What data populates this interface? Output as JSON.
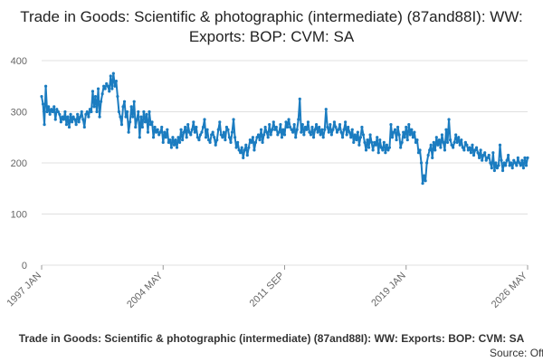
{
  "chart_data": {
    "type": "line",
    "title": "Trade in Goods: Scientific & photographic (intermediate) (87and88I): WW: Exports: BOP: CVM: SA",
    "footer": "Trade in Goods: Scientific & photographic (intermediate) (87and88I): WW: Exports: BOP: CVM: SA",
    "source": "Source: Office for National Statistics",
    "color": "#1b7cc0",
    "ylim": [
      0,
      400
    ],
    "yticks": [
      0,
      100,
      200,
      300,
      400
    ],
    "grid": true,
    "categories": [
      "1997 JAN",
      null,
      null,
      null,
      null,
      null,
      null,
      null,
      null,
      null,
      null,
      null,
      null,
      null,
      null,
      null,
      null,
      null,
      null,
      null,
      null,
      null,
      null,
      null,
      null,
      null,
      null,
      null,
      null,
      null,
      null,
      null,
      null,
      null,
      null,
      null,
      null,
      null,
      null,
      null,
      null,
      null,
      null,
      null,
      null,
      null,
      null,
      null,
      null,
      null,
      null,
      null,
      null,
      null,
      null,
      null,
      null,
      null,
      null,
      null,
      null,
      null,
      null,
      null,
      null,
      null,
      null,
      null,
      null,
      null,
      null,
      null,
      null,
      null,
      null,
      null,
      null,
      null,
      null,
      null,
      null,
      null,
      null,
      null,
      null,
      null,
      null,
      null,
      "2004 MAY",
      null,
      null,
      null,
      null,
      null,
      null,
      null,
      null,
      null,
      null,
      null,
      null,
      null,
      null,
      null,
      null,
      null,
      null,
      null,
      null,
      null,
      null,
      null,
      null,
      null,
      null,
      null,
      null,
      null,
      null,
      null,
      null,
      null,
      null,
      null,
      null,
      null,
      null,
      null,
      null,
      null,
      null,
      null,
      null,
      null,
      null,
      null,
      null,
      null,
      null,
      null,
      null,
      null,
      null,
      null,
      null,
      null,
      null,
      null,
      null,
      null,
      null,
      null,
      null,
      null,
      null,
      null,
      null,
      null,
      null,
      null,
      null,
      null,
      null,
      null,
      null,
      null,
      null,
      null,
      null,
      null,
      null,
      null,
      null,
      null,
      null,
      null,
      "2011 SEP",
      null,
      null,
      null,
      null,
      null,
      null,
      null,
      null,
      null,
      null,
      null,
      null,
      null,
      null,
      null,
      null,
      null,
      null,
      null,
      null,
      null,
      null,
      null,
      null,
      null,
      null,
      null,
      null,
      null,
      null,
      null,
      null,
      null,
      null,
      null,
      null,
      null,
      null,
      null,
      null,
      null,
      null,
      null,
      null,
      null,
      null,
      null,
      null,
      null,
      null,
      null,
      null,
      null,
      null,
      null,
      null,
      null,
      null,
      null,
      null,
      null,
      null,
      null,
      null,
      null,
      null,
      null,
      null,
      null,
      null,
      null,
      null,
      null,
      null,
      null,
      null,
      null,
      null,
      null,
      null,
      null,
      null,
      null,
      null,
      null,
      null,
      null,
      "2019 JAN",
      null,
      null,
      null,
      null,
      null,
      null,
      null,
      null,
      null,
      null,
      null,
      null,
      null,
      null,
      null,
      null,
      null,
      null,
      null,
      null,
      null,
      null,
      null,
      null,
      null,
      null,
      null,
      null,
      null,
      null,
      null,
      null,
      null,
      null,
      null,
      null,
      null,
      null,
      null,
      null,
      null,
      null,
      null,
      null,
      null,
      null,
      null,
      null,
      null,
      null,
      null,
      null,
      null,
      null,
      null,
      null,
      null,
      null,
      null,
      null,
      null,
      null,
      null,
      null,
      null,
      null,
      null,
      null,
      null,
      null,
      null,
      null,
      null,
      null,
      null,
      null,
      null,
      null,
      null,
      null,
      null,
      null,
      null,
      null,
      null,
      null,
      null,
      "2026 MAY"
    ],
    "values": [
      330,
      315,
      275,
      350,
      300,
      310,
      295,
      305,
      300,
      310,
      285,
      305,
      300,
      295,
      280,
      290,
      285,
      300,
      275,
      290,
      270,
      295,
      280,
      290,
      285,
      275,
      295,
      280,
      290,
      300,
      285,
      270,
      295,
      300,
      290,
      305,
      300,
      340,
      310,
      330,
      300,
      345,
      290,
      320,
      335,
      350,
      345,
      355,
      350,
      340,
      370,
      345,
      375,
      350,
      360,
      330,
      300,
      290,
      275,
      310,
      320,
      290,
      300,
      260,
      280,
      310,
      290,
      320,
      270,
      285,
      300,
      250,
      290,
      270,
      300,
      280,
      295,
      260,
      300,
      275,
      280,
      250,
      270,
      260,
      265,
      255,
      260,
      270,
      240,
      260,
      250,
      265,
      240,
      245,
      230,
      250,
      235,
      245,
      230,
      250,
      240,
      265,
      245,
      260,
      270,
      250,
      275,
      260,
      255,
      265,
      280,
      260,
      270,
      250,
      245,
      255,
      260,
      270,
      285,
      250,
      265,
      245,
      240,
      255,
      260,
      250,
      235,
      245,
      265,
      280,
      255,
      250,
      260,
      245,
      270,
      265,
      250,
      240,
      260,
      285,
      250,
      230,
      240,
      225,
      220,
      230,
      210,
      225,
      235,
      215,
      230,
      245,
      240,
      250,
      225,
      240,
      250,
      255,
      245,
      265,
      240,
      255,
      270,
      260,
      250,
      275,
      255,
      265,
      280,
      265,
      270,
      255,
      260,
      275,
      250,
      265,
      255,
      280,
      270,
      285,
      270,
      265,
      260,
      275,
      250,
      265,
      285,
      325,
      260,
      275,
      255,
      270,
      265,
      280,
      260,
      255,
      270,
      250,
      265,
      275,
      260,
      270,
      255,
      265,
      250,
      265,
      305,
      270,
      260,
      275,
      255,
      265,
      280,
      270,
      260,
      265,
      275,
      260,
      250,
      265,
      280,
      255,
      270,
      260,
      250,
      265,
      240,
      255,
      245,
      260,
      235,
      250,
      270,
      255,
      240,
      225,
      245,
      230,
      255,
      240,
      225,
      240,
      235,
      250,
      220,
      245,
      230,
      225,
      240,
      220,
      235,
      225,
      230,
      275,
      250,
      260,
      265,
      245,
      270,
      255,
      230,
      240,
      260,
      250,
      270,
      245,
      275,
      255,
      265,
      250,
      260,
      240,
      245,
      220,
      225,
      200,
      160,
      175,
      165,
      200,
      215,
      225,
      235,
      210,
      240,
      225,
      250,
      235,
      245,
      230,
      255,
      240,
      225,
      265,
      240,
      285,
      245,
      235,
      230,
      240,
      255,
      240,
      250,
      235,
      245,
      230,
      225,
      240,
      235,
      225,
      230,
      220,
      235,
      215,
      225,
      230,
      220,
      210,
      225,
      205,
      215,
      220,
      205,
      210,
      215,
      200,
      190,
      220,
      185,
      200,
      190,
      195,
      235,
      205,
      185,
      200,
      195,
      205,
      215,
      195,
      200,
      190,
      205,
      200,
      195,
      210,
      200,
      195,
      205,
      190,
      210,
      195,
      210
    ]
  }
}
